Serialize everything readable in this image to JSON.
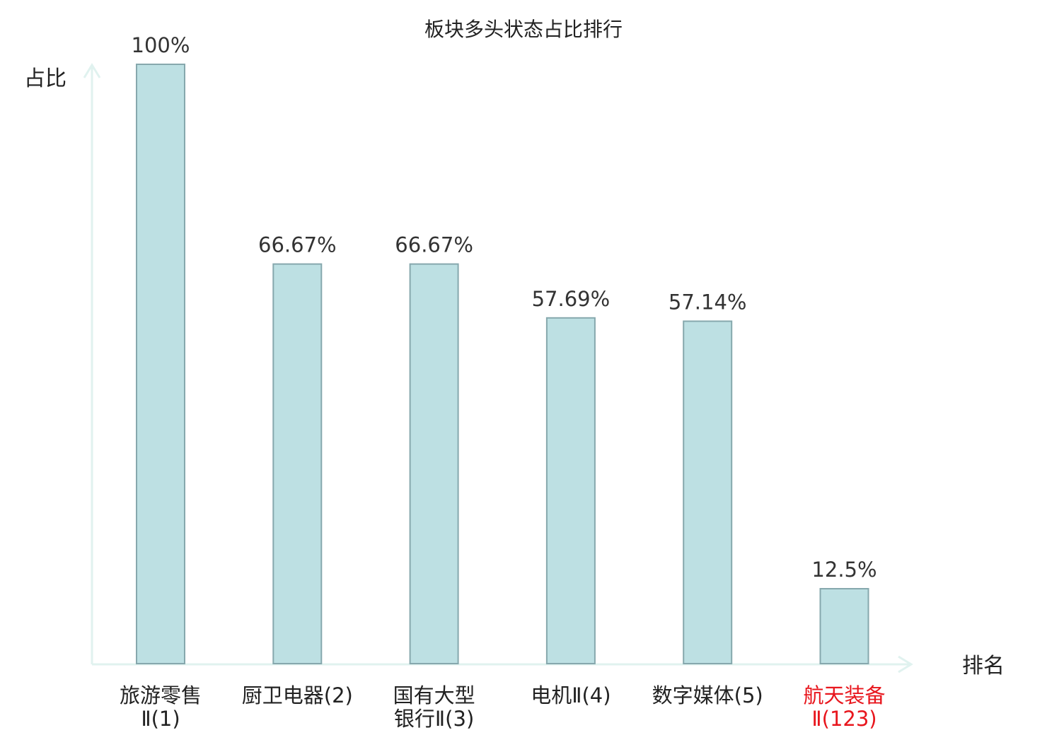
{
  "chart_data": {
    "type": "bar",
    "title": "板块多头状态占比排行",
    "ylabel": "占比",
    "xlabel": "排名",
    "ylim": [
      0,
      100
    ],
    "unit": "%",
    "grid": false,
    "legend": "none",
    "categories": [
      [
        "旅游零售",
        "Ⅱ(1)"
      ],
      [
        "厨卫电器(2)"
      ],
      [
        "国有大型",
        "银行Ⅱ(3)"
      ],
      [
        "电机Ⅱ(4)"
      ],
      [
        "数字媒体(5)"
      ],
      [
        "航天装备",
        "Ⅱ(123)"
      ]
    ],
    "values": [
      100,
      66.67,
      66.67,
      57.69,
      57.14,
      12.5
    ],
    "value_labels": [
      "100%",
      "66.67%",
      "66.67%",
      "57.69%",
      "57.14%",
      "12.5%"
    ],
    "highlight_index": 5,
    "colors": {
      "bar_fill": "#bde0e3",
      "bar_stroke": "#86a8ad",
      "axis": "#e0f2ef",
      "text": "#222222",
      "value_text": "#333333",
      "highlight_text": "#e8161d"
    }
  }
}
